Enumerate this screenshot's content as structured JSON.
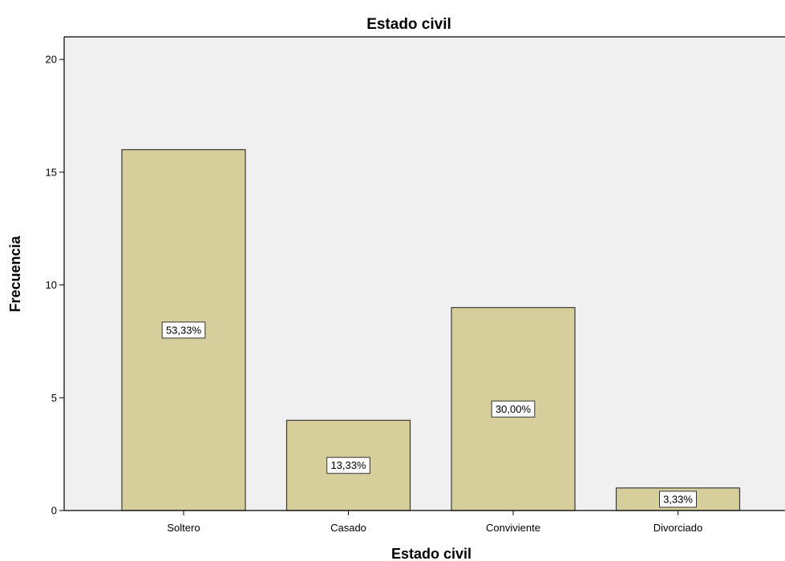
{
  "chart_data": {
    "type": "bar",
    "title": "Estado civil",
    "xlabel": "Estado civil",
    "ylabel": "Frecuencia",
    "categories": [
      "Soltero",
      "Casado",
      "Conviviente",
      "Divorciado"
    ],
    "values": [
      16,
      4,
      9,
      1
    ],
    "data_labels": [
      "53,33%",
      "13,33%",
      "30,00%",
      "3,33%"
    ],
    "ylim": [
      0,
      21
    ],
    "yticks": [
      0,
      5,
      10,
      15,
      20
    ],
    "grid": false,
    "legend": "none",
    "colors": {
      "bar_fill": "#d6cf9c",
      "bar_stroke": "#3a3a3a",
      "plot_background": "#f0f0f0",
      "axis": "#000000",
      "label_box_fill": "#ffffff",
      "label_box_stroke": "#333333"
    }
  }
}
